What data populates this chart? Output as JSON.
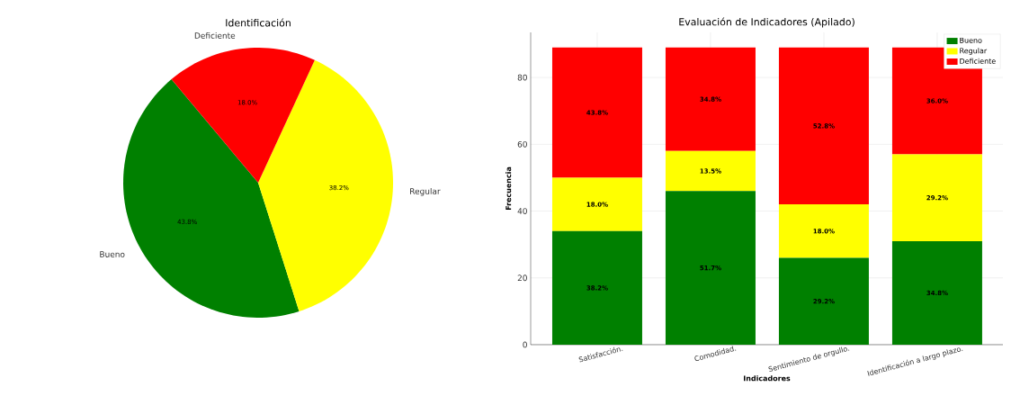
{
  "chart_data": [
    {
      "type": "pie",
      "title": "Identificación",
      "categories": [
        "Bueno",
        "Regular",
        "Deficiente"
      ],
      "values": [
        43.8,
        38.2,
        18.0
      ],
      "colors": [
        "#008000",
        "#ffff00",
        "#ff0000"
      ],
      "value_labels": [
        "43.8%",
        "38.2%",
        "18.0%"
      ]
    },
    {
      "type": "bar",
      "title": "Evaluación de Indicadores (Apilado)",
      "xlabel": "Indicadores",
      "ylabel": "Frecuencia",
      "categories": [
        "Satisfacción.",
        "Comodidad.",
        "Sentimiento de orgullo.",
        "Identificación a largo plazo."
      ],
      "stacked": true,
      "ylim": [
        0,
        93.5
      ],
      "yticks": [
        0,
        20,
        40,
        60,
        80
      ],
      "grid": true,
      "legend": "top right",
      "series": [
        {
          "name": "Bueno",
          "color": "#008000",
          "values": [
            34,
            46,
            26,
            31
          ]
        },
        {
          "name": "Regular",
          "color": "#ffff00",
          "values": [
            16,
            12,
            16,
            26
          ]
        },
        {
          "name": "Deficiente",
          "color": "#ff0000",
          "values": [
            39,
            31,
            47,
            32
          ]
        }
      ],
      "annotations": [
        "38.2%",
        "51.7%",
        "29.2%",
        "34.8%",
        "18.0%",
        "13.5%",
        "18.0%",
        "29.2%",
        "43.8%",
        "34.8%",
        "52.8%",
        "36.0%"
      ]
    }
  ]
}
